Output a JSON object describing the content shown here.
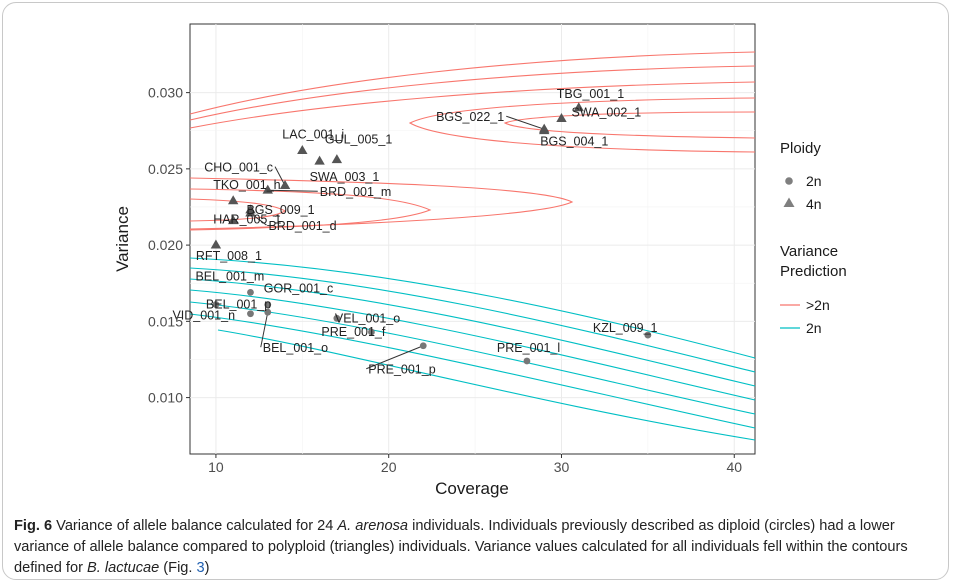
{
  "chart_data": {
    "type": "scatter",
    "xlabel": "Coverage",
    "ylabel": "Variance",
    "xlim": [
      8.5,
      41.2
    ],
    "ylim": [
      0.0063,
      0.0345
    ],
    "xticks": [
      10,
      20,
      30,
      40
    ],
    "yticks": [
      0.01,
      0.015,
      0.02,
      0.025,
      0.03
    ],
    "xtick_labels": [
      "10",
      "20",
      "30",
      "40"
    ],
    "ytick_labels": [
      "0.010",
      "0.015",
      "0.020",
      "0.025",
      "0.030"
    ],
    "grid": true,
    "legend": {
      "placement": "right",
      "ploidy_title": "Ploidy",
      "ploidy_items": [
        {
          "label": "2n",
          "shape": "circle"
        },
        {
          "label": "4n",
          "shape": "triangle"
        }
      ],
      "variance_title_line1": "Variance",
      "variance_title_line2": "Prediction",
      "variance_items": [
        {
          "label": ">2n",
          "color": "#f8766d"
        },
        {
          "label": "2n",
          "color": "#00bfc4"
        }
      ]
    },
    "points": [
      {
        "label": "TBG_001_1",
        "x": 31.0,
        "y": 0.029,
        "ploidy": "4n"
      },
      {
        "label": "BGS_022_1",
        "x": 29.0,
        "y": 0.0276,
        "ploidy": "4n"
      },
      {
        "label": "SWA_002_1",
        "x": 30.0,
        "y": 0.0283,
        "ploidy": "4n"
      },
      {
        "label": "BGS_004_1",
        "x": 29.0,
        "y": 0.0275,
        "ploidy": "4n"
      },
      {
        "label": "LAC_001_i",
        "x": 15.0,
        "y": 0.0262,
        "ploidy": "4n"
      },
      {
        "label": "CHO_001_c",
        "x": 14.0,
        "y": 0.0239,
        "ploidy": "4n"
      },
      {
        "label": "GUL_005_1",
        "x": 17.0,
        "y": 0.0256,
        "ploidy": "4n"
      },
      {
        "label": "SWA_003_1",
        "x": 16.0,
        "y": 0.0255,
        "ploidy": "4n"
      },
      {
        "label": "TKO_001_h",
        "x": 11.0,
        "y": 0.0229,
        "ploidy": "4n"
      },
      {
        "label": "BRD_001_m",
        "x": 13.0,
        "y": 0.0236,
        "ploidy": "4n"
      },
      {
        "label": "BGS_009_1",
        "x": 12.0,
        "y": 0.0223,
        "ploidy": "4n"
      },
      {
        "label": "BRD_001_d",
        "x": 12.0,
        "y": 0.0221,
        "ploidy": "4n"
      },
      {
        "label": "HAR_005_1",
        "x": 11.0,
        "y": 0.0216,
        "ploidy": "4n"
      },
      {
        "label": "RFT_008_1",
        "x": 10.0,
        "y": 0.02,
        "ploidy": "4n"
      },
      {
        "label": "BEL_001_m",
        "x": 12.0,
        "y": 0.0169,
        "ploidy": "2n"
      },
      {
        "label": "BEL_001_p",
        "x": 10.0,
        "y": 0.0161,
        "ploidy": "2n"
      },
      {
        "label": "GOR_001_c",
        "x": 13.0,
        "y": 0.0161,
        "ploidy": "2n"
      },
      {
        "label": "VID_001_n",
        "x": 12.0,
        "y": 0.0155,
        "ploidy": "2n"
      },
      {
        "label": "BEL_001_o",
        "x": 13.0,
        "y": 0.0156,
        "ploidy": "2n"
      },
      {
        "label": "VEL_001_o",
        "x": 17.0,
        "y": 0.0152,
        "ploidy": "2n"
      },
      {
        "label": "PRE_001_f",
        "x": 19.0,
        "y": 0.0143,
        "ploidy": "2n"
      },
      {
        "label": "PRE_001_p",
        "x": 22.0,
        "y": 0.0134,
        "ploidy": "2n"
      },
      {
        "label": "PRE_001_l",
        "x": 28.0,
        "y": 0.0124,
        "ploidy": "2n"
      },
      {
        "label": "KZL_009_1",
        "x": 35.0,
        "y": 0.0141,
        "ploidy": "2n"
      }
    ]
  },
  "caption": {
    "fig_label": "Fig. 6",
    "text1": "  Variance of allele balance calculated for 24 ",
    "species1": "A. arenosa",
    "text2": " individuals. Individuals previously described as diploid (circles) had a lower variance of allele balance compared to polyploid (triangles) individuals. Variance values calculated for all individuals fell within the contours defined for ",
    "species2": "B. lactucae",
    "text3": " (Fig. ",
    "fig_ref": "3",
    "text4": ")"
  }
}
